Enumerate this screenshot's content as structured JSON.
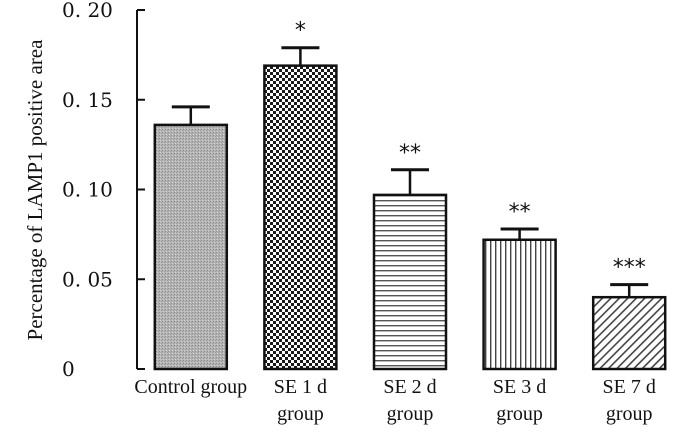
{
  "chart_data": {
    "type": "bar",
    "ylabel": "Percentage of LAMP1 positive area",
    "xlabel": "",
    "ylim": [
      0,
      0.2
    ],
    "yticks": [
      {
        "value": 0,
        "label": "0"
      },
      {
        "value": 0.05,
        "label": "0. 05"
      },
      {
        "value": 0.1,
        "label": "0. 10"
      },
      {
        "value": 0.15,
        "label": "0. 15"
      },
      {
        "value": 0.2,
        "label": "0. 20"
      }
    ],
    "grid": false,
    "categories": [
      {
        "lines": [
          "Control group"
        ]
      },
      {
        "lines": [
          "SE  1   d",
          "group"
        ]
      },
      {
        "lines": [
          "SE  2   d",
          "group"
        ]
      },
      {
        "lines": [
          "SE  3   d",
          "group"
        ]
      },
      {
        "lines": [
          "SE  7   d",
          "group"
        ]
      }
    ],
    "values": [
      0.136,
      0.169,
      0.097,
      0.072,
      0.04
    ],
    "errors": [
      0.01,
      0.01,
      0.014,
      0.006,
      0.007
    ],
    "significance": [
      "",
      "*",
      "**",
      "**",
      "***"
    ],
    "patterns": [
      "gray-fine",
      "checker",
      "horizontal-lines",
      "vertical-lines",
      "diagonal-lines"
    ]
  }
}
